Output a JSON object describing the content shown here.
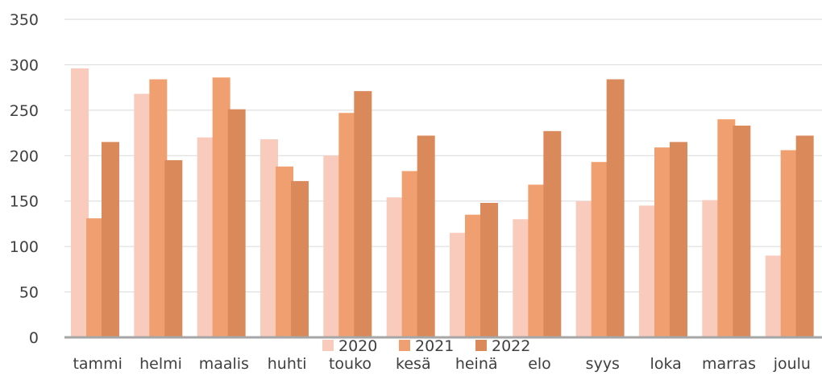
{
  "chart_data": {
    "type": "bar",
    "title": "",
    "xlabel": "",
    "ylabel": "",
    "ylim": [
      0,
      350
    ],
    "yticks": [
      0,
      50,
      100,
      150,
      200,
      250,
      300,
      350
    ],
    "grid": true,
    "legend_position": "bottom",
    "categories": [
      "tammi",
      "helmi",
      "maalis",
      "huhti",
      "touko",
      "kesä",
      "heinä",
      "elo",
      "syys",
      "loka",
      "marras",
      "joulu"
    ],
    "series": [
      {
        "name": "2020",
        "color": "#f8cbbd",
        "values": [
          296,
          268,
          220,
          218,
          200,
          154,
          115,
          130,
          150,
          145,
          151,
          90
        ]
      },
      {
        "name": "2021",
        "color": "#f0a070",
        "values": [
          131,
          284,
          286,
          188,
          247,
          183,
          135,
          168,
          193,
          209,
          240,
          206
        ]
      },
      {
        "name": "2022",
        "color": "#d9895a",
        "values": [
          215,
          195,
          251,
          172,
          271,
          222,
          148,
          227,
          284,
          215,
          233,
          222
        ]
      }
    ]
  }
}
